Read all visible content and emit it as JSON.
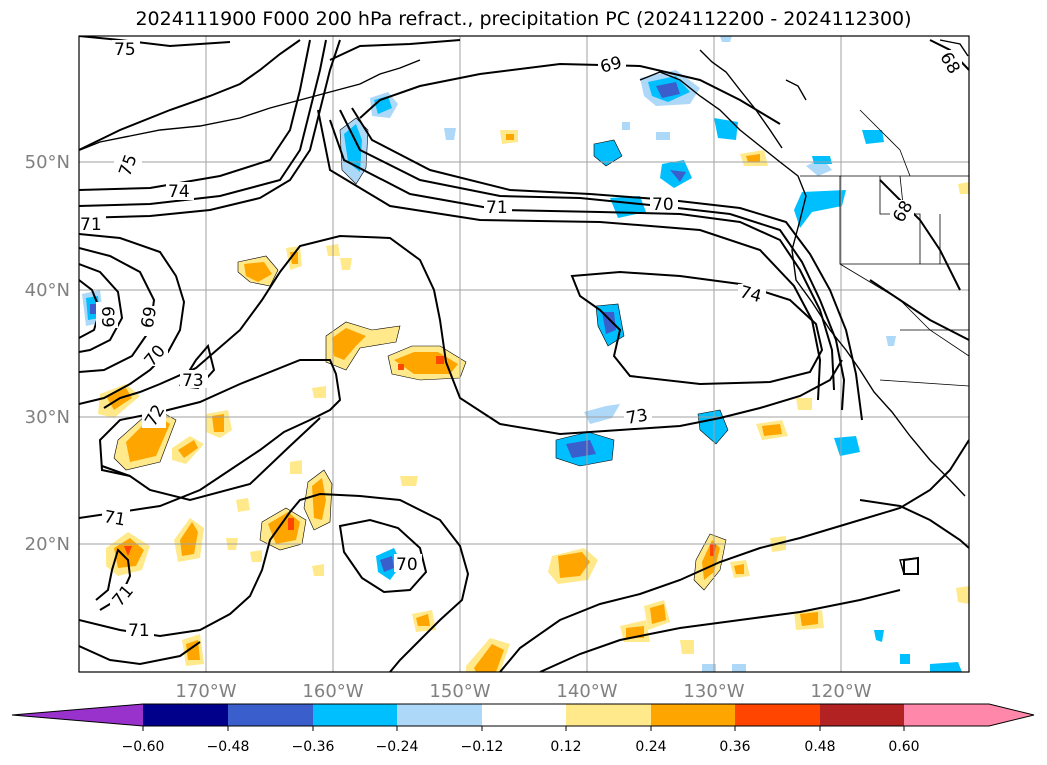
{
  "title": "2024111900 F000 200 hPa refract., precipitation PC (2024112200 - 2024112300)",
  "map": {
    "lon_labels": [
      "170°W",
      "160°W",
      "150°W",
      "140°W",
      "130°W",
      "120°W"
    ],
    "lat_labels": [
      "50°N",
      "40°N",
      "30°N",
      "20°N"
    ],
    "contour_labels": [
      "75",
      "75",
      "74",
      "71",
      "69",
      "69",
      "70",
      "73",
      "72",
      "71",
      "71",
      "71",
      "69",
      "71",
      "70",
      "74",
      "73",
      "70",
      "68",
      "68"
    ]
  },
  "colorbar": {
    "ticks": [
      "−0.60",
      "−0.48",
      "−0.36",
      "−0.24",
      "−0.12",
      "0.12",
      "0.24",
      "0.36",
      "0.48",
      "0.60"
    ],
    "colors": [
      "#9932cc",
      "#00008b",
      "#3a5fcd",
      "#00bfff",
      "#add8f8",
      "#ffffff",
      "#ffe98a",
      "#ffa500",
      "#ff4500",
      "#b22222",
      "#ff88aa"
    ]
  },
  "colors": {
    "contour": "#000000",
    "grid": "#a0a0a0",
    "coast": "#000000",
    "axis_label": "#808080"
  }
}
